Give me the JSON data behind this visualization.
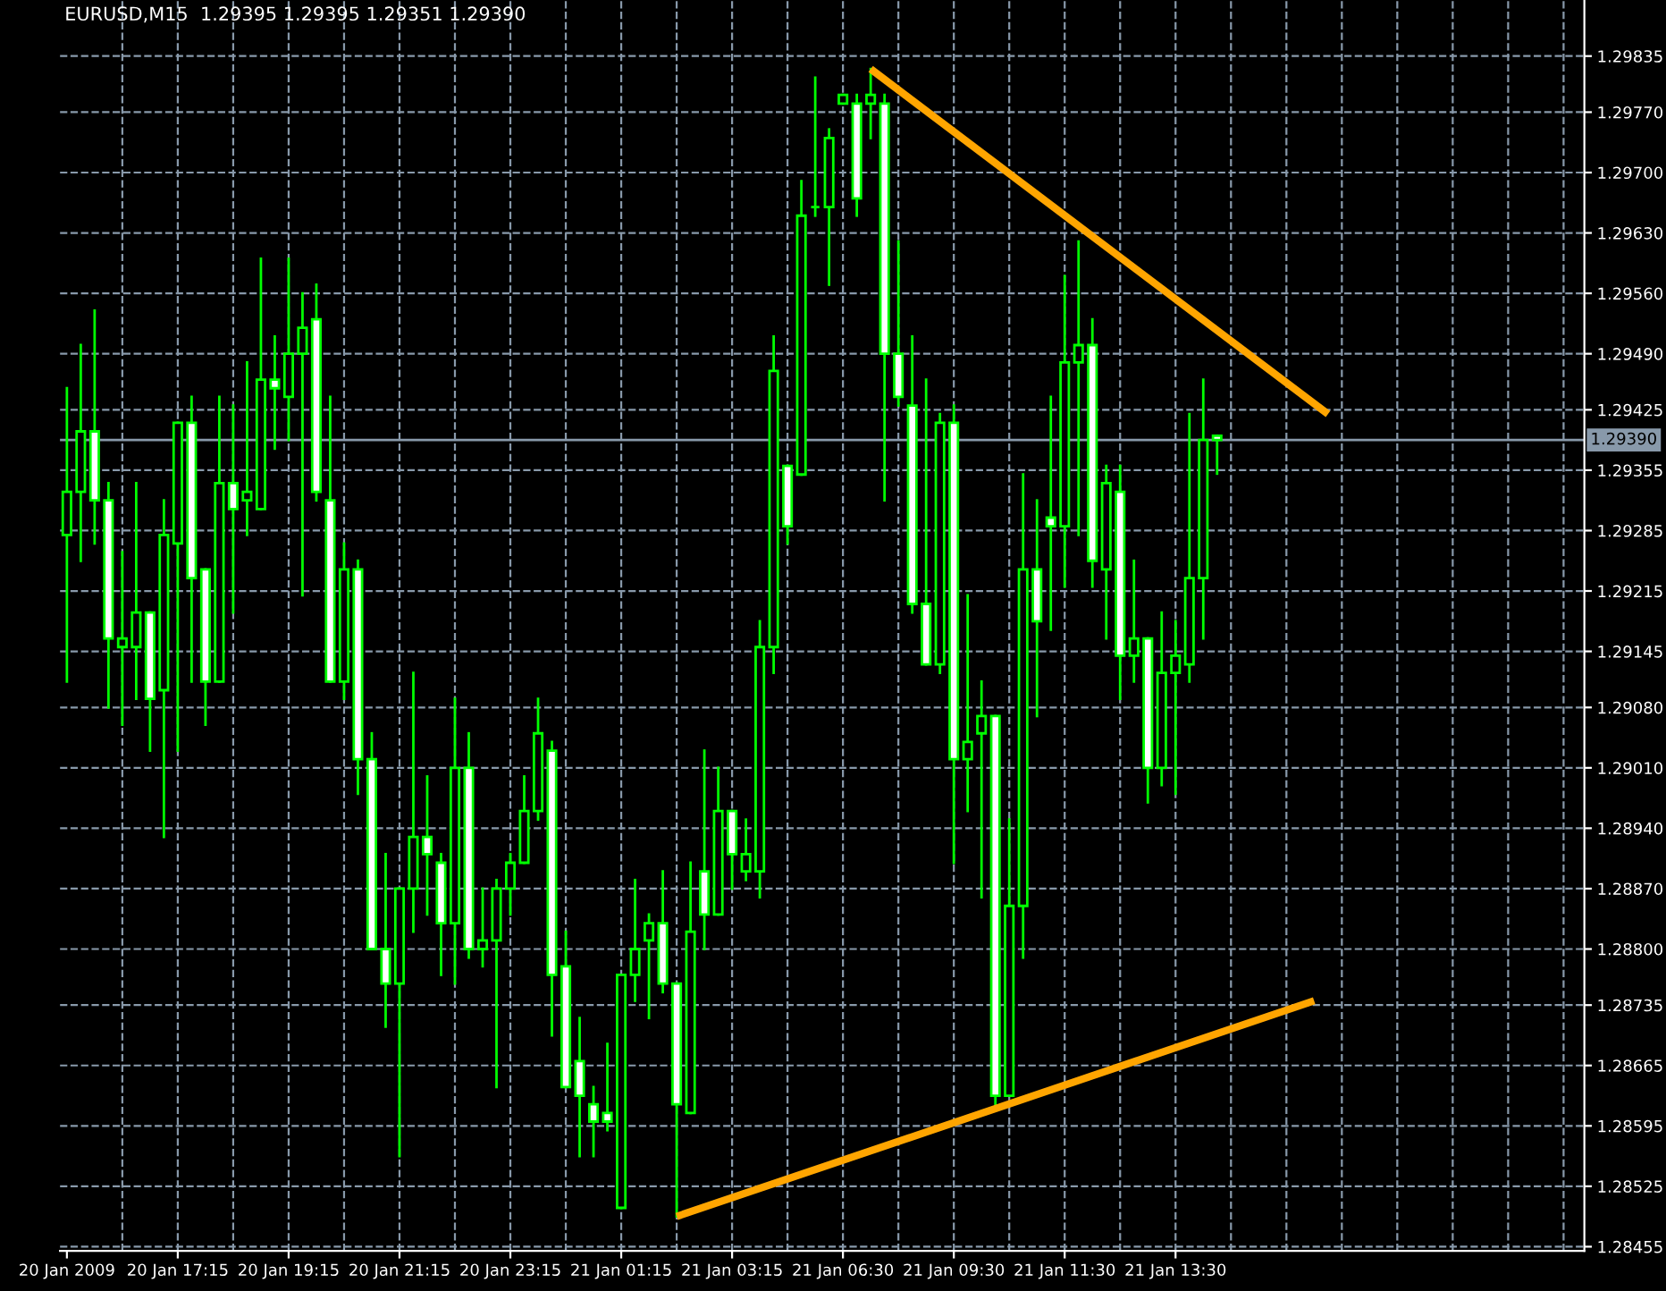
{
  "chart_data": {
    "type": "candlestick",
    "title": "EURUSD,M15  1.29395 1.29395 1.29351 1.29390",
    "categories": [
      "20 Jan 2009",
      null,
      null,
      null,
      null,
      null,
      null,
      null,
      "20 Jan 17:15",
      null,
      null,
      null,
      null,
      null,
      null,
      null,
      "20 Jan 19:15",
      null,
      null,
      null,
      null,
      null,
      null,
      null,
      "20 Jan 21:15",
      null,
      null,
      null,
      null,
      null,
      null,
      null,
      "20 Jan 23:15",
      null,
      null,
      null,
      null,
      null,
      null,
      null,
      "21 Jan 01:15",
      null,
      null,
      null,
      null,
      null,
      null,
      null,
      "21 Jan 03:15",
      null,
      null,
      null,
      null,
      null,
      null,
      null,
      "21 Jan 06:30",
      null,
      null,
      null,
      null,
      null,
      null,
      null,
      "21 Jan 09:30",
      null,
      null,
      null,
      null,
      null,
      null,
      null,
      "21 Jan 11:30",
      null,
      null,
      null,
      null,
      null,
      null,
      null,
      "21 Jan 13:30",
      null,
      null,
      null,
      null,
      null,
      null,
      null,
      null,
      null,
      null,
      null,
      null,
      null,
      null,
      null,
      null,
      null,
      null,
      null,
      null,
      null,
      null,
      null,
      null,
      null,
      null,
      null,
      null,
      null
    ],
    "color": "#00ff00",
    "ohlc": [
      [
        1.2928,
        1.2945,
        1.2911,
        1.2933
      ],
      [
        1.2933,
        1.295,
        1.2925,
        1.294
      ],
      [
        1.294,
        1.2954,
        1.2927,
        1.2932
      ],
      [
        1.2932,
        1.2934,
        1.2908,
        1.2916
      ],
      [
        1.2915,
        1.2926,
        1.2906,
        1.2916
      ],
      [
        1.2915,
        1.2934,
        1.2909,
        1.2919
      ],
      [
        1.2919,
        1.2919,
        1.2903,
        1.2909
      ],
      [
        1.291,
        1.2932,
        1.2893,
        1.2928
      ],
      [
        1.2927,
        1.2941,
        1.2903,
        1.2941
      ],
      [
        1.2941,
        1.2944,
        1.2911,
        1.2923
      ],
      [
        1.2924,
        1.2924,
        1.2906,
        1.2911
      ],
      [
        1.2911,
        1.2944,
        1.2911,
        1.2934
      ],
      [
        1.2934,
        1.2943,
        1.2919,
        1.2931
      ],
      [
        1.2932,
        1.2948,
        1.2928,
        1.2933
      ],
      [
        1.2931,
        1.296,
        1.2931,
        1.2946
      ],
      [
        1.2946,
        1.2951,
        1.2938,
        1.2945
      ],
      [
        1.2944,
        1.296,
        1.2939,
        1.2949
      ],
      [
        1.2949,
        1.2956,
        1.2921,
        1.2952
      ],
      [
        1.2953,
        1.2957,
        1.2932,
        1.2933
      ],
      [
        1.2932,
        1.2944,
        1.2911,
        1.2911
      ],
      [
        1.2911,
        1.2927,
        1.2909,
        1.2924
      ],
      [
        1.2924,
        1.2925,
        1.2898,
        1.2902
      ],
      [
        1.2902,
        1.2905,
        1.288,
        1.288
      ],
      [
        1.288,
        1.2891,
        1.2871,
        1.2876
      ],
      [
        1.2876,
        1.2887,
        1.2856,
        1.2887
      ],
      [
        1.2887,
        1.2912,
        1.2882,
        1.2893
      ],
      [
        1.2893,
        1.29,
        1.2884,
        1.2891
      ],
      [
        1.289,
        1.2891,
        1.2877,
        1.2883
      ],
      [
        1.2883,
        1.2909,
        1.2876,
        1.2901
      ],
      [
        1.2901,
        1.2905,
        1.2879,
        1.288
      ],
      [
        1.288,
        1.2887,
        1.2878,
        1.2881
      ],
      [
        1.2881,
        1.2888,
        1.2864,
        1.2887
      ],
      [
        1.2887,
        1.2891,
        1.2884,
        1.289
      ],
      [
        1.289,
        1.29,
        1.289,
        1.2896
      ],
      [
        1.2896,
        1.2909,
        1.2895,
        1.2905
      ],
      [
        1.2903,
        1.2904,
        1.287,
        1.2877
      ],
      [
        1.2878,
        1.2882,
        1.2864,
        1.2864
      ],
      [
        1.2867,
        1.2872,
        1.2856,
        1.2863
      ],
      [
        1.2862,
        1.2864,
        1.2856,
        1.286
      ],
      [
        1.2861,
        1.2869,
        1.2859,
        1.286
      ],
      [
        1.285,
        1.2877,
        1.285,
        1.2877
      ],
      [
        1.2877,
        1.2888,
        1.2874,
        1.288
      ],
      [
        1.2881,
        1.2884,
        1.2872,
        1.2883
      ],
      [
        1.2883,
        1.2889,
        1.2875,
        1.2876
      ],
      [
        1.2876,
        1.2876,
        1.2849,
        1.2862
      ],
      [
        1.2861,
        1.289,
        1.2861,
        1.2882
      ],
      [
        1.2889,
        1.2903,
        1.288,
        1.2884
      ],
      [
        1.2884,
        1.2901,
        1.2884,
        1.2896
      ],
      [
        1.2896,
        1.2896,
        1.2887,
        1.2891
      ],
      [
        1.2889,
        1.2895,
        1.2888,
        1.2891
      ],
      [
        1.2889,
        1.2918,
        1.2886,
        1.2915
      ],
      [
        1.2915,
        1.2951,
        1.2912,
        1.2947
      ],
      [
        1.2936,
        1.2936,
        1.2927,
        1.2929
      ],
      [
        1.2935,
        1.2969,
        1.2935,
        1.2965
      ],
      [
        1.2966,
        1.2981,
        1.2965,
        1.2966
      ],
      [
        1.2966,
        1.2975,
        1.2957,
        1.2974
      ],
      [
        1.2978,
        1.2979,
        1.2978,
        1.2979
      ],
      [
        1.2978,
        1.2979,
        1.2965,
        1.2967
      ],
      [
        1.2978,
        1.2982,
        1.2974,
        1.2979
      ],
      [
        1.2978,
        1.2979,
        1.2932,
        1.2949
      ],
      [
        1.2949,
        1.2962,
        1.2943,
        1.2944
      ],
      [
        1.2943,
        1.2951,
        1.2919,
        1.292
      ],
      [
        1.292,
        1.2946,
        1.2913,
        1.2913
      ],
      [
        1.2913,
        1.2942,
        1.2912,
        1.2941
      ],
      [
        1.2941,
        1.2943,
        1.289,
        1.2902
      ],
      [
        1.2902,
        1.2921,
        1.2896,
        1.2904
      ],
      [
        1.2905,
        1.2911,
        1.2886,
        1.2907
      ],
      [
        1.2907,
        1.2907,
        1.2862,
        1.2863
      ],
      [
        1.2863,
        1.2895,
        1.2863,
        1.2885
      ],
      [
        1.2885,
        1.2935,
        1.2879,
        1.2924
      ],
      [
        1.2924,
        1.2932,
        1.2907,
        1.2918
      ],
      [
        1.293,
        1.2944,
        1.2917,
        1.2929
      ],
      [
        1.2929,
        1.2958,
        1.2922,
        1.2948
      ],
      [
        1.2948,
        1.2962,
        1.2928,
        1.295
      ],
      [
        1.295,
        1.2953,
        1.2922,
        1.2925
      ],
      [
        1.2924,
        1.2936,
        1.2916,
        1.2934
      ],
      [
        1.2933,
        1.2936,
        1.2909,
        1.2914
      ],
      [
        1.2914,
        1.2925,
        1.2911,
        1.2916
      ],
      [
        1.2916,
        1.2916,
        1.2897,
        1.2901
      ],
      [
        1.2901,
        1.2919,
        1.2899,
        1.2912
      ],
      [
        1.2912,
        1.2918,
        1.2898,
        1.2914
      ],
      [
        1.2913,
        1.2942,
        1.2911,
        1.2923
      ],
      [
        1.2923,
        1.2946,
        1.2916,
        1.2939
      ],
      [
        1.29395,
        1.29395,
        1.29351,
        1.2939
      ],
      null,
      null,
      null,
      null,
      null,
      null,
      null,
      null,
      null,
      null,
      null,
      null,
      null,
      null,
      null,
      null,
      null,
      null,
      null,
      null,
      null,
      null,
      null,
      null,
      null,
      null
    ],
    "series": [
      {
        "type": "line",
        "color": "#ffa500",
        "values": [
          null,
          null,
          null,
          null,
          null,
          null,
          null,
          null,
          null,
          null,
          null,
          null,
          null,
          null,
          null,
          null,
          null,
          null,
          null,
          null,
          null,
          null,
          null,
          null,
          null,
          null,
          null,
          null,
          null,
          null,
          null,
          null,
          null,
          null,
          null,
          null,
          null,
          null,
          null,
          null,
          null,
          null,
          null,
          null,
          null,
          null,
          null,
          null,
          null,
          null,
          null,
          null,
          null,
          null,
          null,
          null,
          null,
          null,
          1.2982,
          null,
          null,
          null,
          null,
          null,
          null,
          null,
          null,
          null,
          null,
          null,
          null,
          null,
          null,
          null,
          null,
          null,
          null,
          null,
          null,
          null,
          null,
          null,
          null,
          null,
          null,
          null,
          null,
          null,
          null,
          null,
          null,
          1.2942,
          null,
          null,
          null,
          null,
          null,
          null,
          null,
          null,
          null,
          null,
          null,
          null,
          null,
          null,
          null,
          null,
          null,
          null
        ]
      },
      {
        "type": "line",
        "color": "#ffa500",
        "values": [
          null,
          null,
          null,
          null,
          null,
          null,
          null,
          null,
          null,
          null,
          null,
          null,
          null,
          null,
          null,
          null,
          null,
          null,
          null,
          null,
          null,
          null,
          null,
          null,
          null,
          null,
          null,
          null,
          null,
          null,
          null,
          null,
          null,
          null,
          null,
          null,
          null,
          null,
          null,
          null,
          null,
          null,
          null,
          null,
          1.2849,
          null,
          null,
          null,
          null,
          null,
          null,
          null,
          null,
          null,
          null,
          null,
          null,
          null,
          null,
          null,
          null,
          null,
          null,
          null,
          null,
          null,
          null,
          null,
          null,
          null,
          null,
          null,
          null,
          null,
          null,
          null,
          null,
          null,
          null,
          null,
          null,
          null,
          null,
          null,
          null,
          null,
          null,
          null,
          null,
          null,
          1.2874,
          null,
          null,
          null,
          null,
          null,
          null,
          null,
          null,
          null,
          null,
          null,
          null,
          null,
          null,
          null,
          null,
          null,
          null,
          null
        ]
      }
    ],
    "ylim": [
      1.2845,
      1.299
    ],
    "yticks": [
      1.28455,
      1.28525,
      1.28595,
      1.28665,
      1.28735,
      {
        "value": 1.288,
        "label": "1.28800"
      },
      {
        "value": 1.2887,
        "label": "1.28870"
      },
      {
        "value": 1.2894,
        "label": "1.28940"
      },
      {
        "value": 1.2901,
        "label": "1.29010"
      },
      {
        "value": 1.2908,
        "label": "1.29080"
      },
      1.29145,
      1.29215,
      1.29285,
      1.29355,
      1.29425,
      {
        "value": 1.2949,
        "label": "1.29490"
      },
      {
        "value": 1.2956,
        "label": "1.29560"
      },
      {
        "value": 1.2963,
        "label": "1.29630"
      },
      {
        "value": 1.297,
        "label": "1.29700"
      },
      {
        "value": 1.2977,
        "label": "1.29770"
      },
      1.29835
    ],
    "ref_lines": [
      {
        "axis": "y",
        "value": 1.2939,
        "label": "1.29390",
        "color": "#8899aa"
      }
    ],
    "grid": true
  }
}
